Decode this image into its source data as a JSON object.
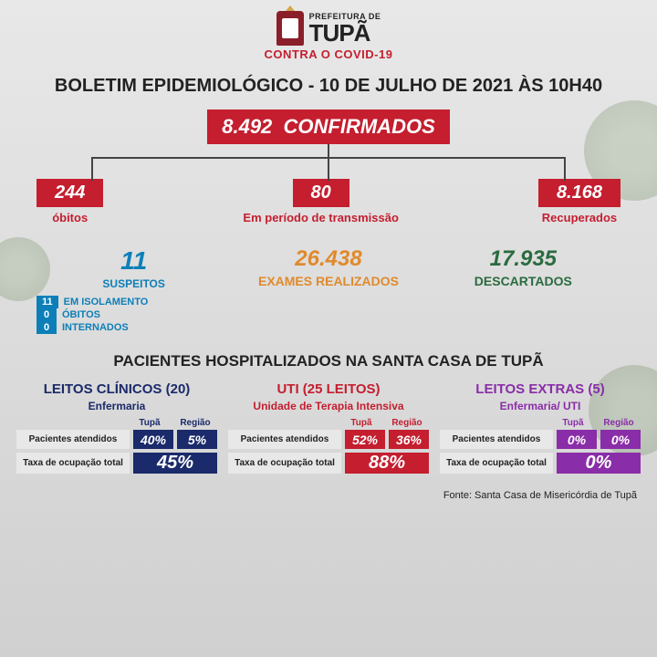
{
  "header": {
    "prefeitura": "PREFEITURA DE",
    "city": "TUPÃ",
    "subtitle": "CONTRA O COVID-19"
  },
  "title": "BOLETIM EPIDEMIOLÓGICO - 10 DE JULHO DE 2021 ÀS 10H40",
  "confirmed": {
    "value": "8.492",
    "label": "CONFIRMADOS"
  },
  "tree": [
    {
      "value": "244",
      "label": "óbitos"
    },
    {
      "value": "80",
      "label": "Em período de transmissão"
    },
    {
      "value": "8.168",
      "label": "Recuperados"
    }
  ],
  "suspects": {
    "value": "11",
    "label": "SUSPEITOS",
    "items": [
      {
        "n": "11",
        "t": "EM ISOLAMENTO"
      },
      {
        "n": "0",
        "t": "ÓBITOS"
      },
      {
        "n": "0",
        "t": "INTERNADOS"
      }
    ]
  },
  "exams": {
    "value": "26.438",
    "label": "EXAMES REALIZADOS"
  },
  "discarded": {
    "value": "17.935",
    "label": "DESCARTADOS"
  },
  "hospital_title": "PACIENTES HOSPITALIZADOS NA SANTA CASA DE TUPÃ",
  "col_labels": {
    "tupa": "Tupã",
    "regiao": "Região"
  },
  "row_labels": {
    "atendidos": "Pacientes atendidos",
    "taxa": "Taxa de ocupação total"
  },
  "panels": [
    {
      "key": "blue",
      "title": "LEITOS CLÍNICOS (20)",
      "sub": "Enfermaria",
      "tupa": "40%",
      "regiao": "5%",
      "total": "45%",
      "color": "#1a2a6a"
    },
    {
      "key": "red",
      "title": "UTI (25 LEITOS)",
      "sub": "Unidade de Terapia Intensiva",
      "tupa": "52%",
      "regiao": "36%",
      "total": "88%",
      "color": "#c41e2f"
    },
    {
      "key": "purple",
      "title": "LEITOS EXTRAS (5)",
      "sub": "Enfermaria/ UTI",
      "tupa": "0%",
      "regiao": "0%",
      "total": "0%",
      "color": "#8a2da8"
    }
  ],
  "source": "Fonte: Santa Casa de Misericórdia de Tupã",
  "colors": {
    "red": "#c41e2f",
    "blue": "#0d7fb8",
    "orange": "#e08a2c",
    "green": "#2a6b3f",
    "panel_blue": "#1a2a6a",
    "panel_purple": "#8a2da8",
    "bg_top": "#e8e8e8",
    "bg_bot": "#d0d0d0"
  }
}
